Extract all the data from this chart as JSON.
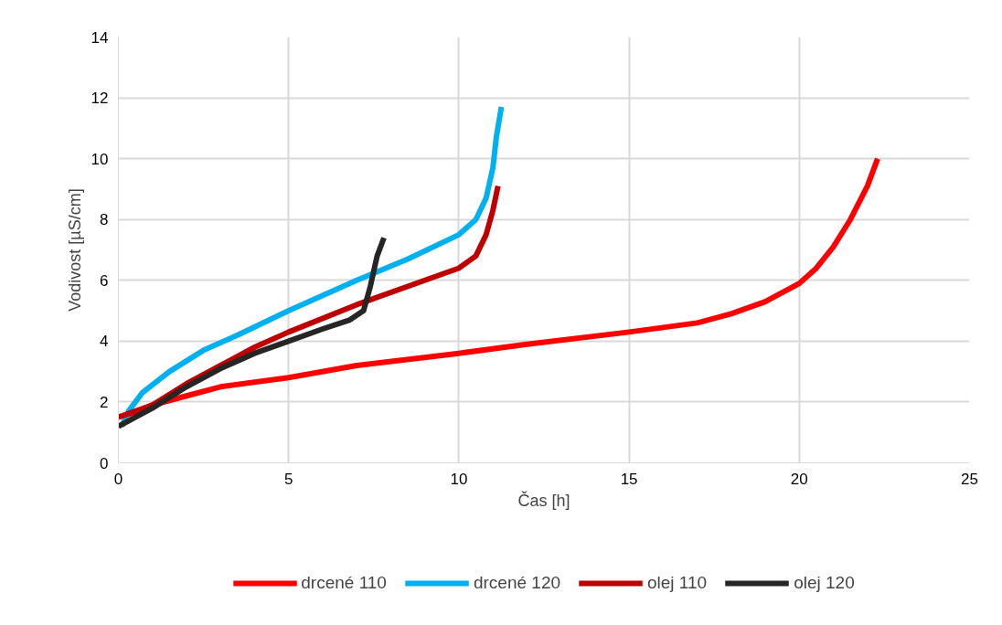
{
  "chart_data": {
    "type": "line",
    "xlabel": "Čas [h]",
    "ylabel": "Vodivost [µS/cm]",
    "xlim": [
      0,
      25
    ],
    "xticks": [
      0,
      5,
      10,
      15,
      20,
      25
    ],
    "ylim": [
      0,
      14
    ],
    "yticks": [
      0,
      2,
      4,
      6,
      8,
      10,
      12,
      14
    ],
    "grid": true,
    "legend": "bottom",
    "marker": "none",
    "line_style": "solid",
    "series": [
      {
        "name": "drcené 110",
        "color": "#ff0000",
        "x": [
          0.1,
          1,
          2,
          3,
          5,
          7,
          10,
          12,
          15,
          17,
          18,
          19,
          20,
          20.5,
          21,
          21.5,
          22,
          22.3
        ],
        "values": [
          1.5,
          1.9,
          2.2,
          2.5,
          2.8,
          3.2,
          3.6,
          3.9,
          4.3,
          4.6,
          4.9,
          5.3,
          5.9,
          6.4,
          7.1,
          8,
          9.1,
          10
        ]
      },
      {
        "name": "drcené 120",
        "color": "#00b0f0",
        "x": [
          0.1,
          0.3,
          0.7,
          1.5,
          2.5,
          3.5,
          5,
          7,
          8.5,
          10,
          10.5,
          10.8,
          11,
          11.1,
          11.25
        ],
        "values": [
          1.2,
          1.7,
          2.3,
          3,
          3.7,
          4.2,
          5.0,
          6,
          6.7,
          7.5,
          8,
          8.7,
          9.7,
          10.7,
          11.7
        ]
      },
      {
        "name": "olej 110",
        "color": "#c00000",
        "x": [
          0,
          1,
          2,
          3,
          4,
          5,
          7,
          9,
          10,
          10.5,
          10.8,
          11,
          11.15
        ],
        "values": [
          1.5,
          1.9,
          2.6,
          3.2,
          3.8,
          4.3,
          5.2,
          6,
          6.4,
          6.8,
          7.5,
          8.3,
          9.1
        ]
      },
      {
        "name": "olej 120",
        "color": "#262626",
        "x": [
          0,
          1,
          2,
          3,
          4,
          5,
          6,
          6.8,
          7.2,
          7.4,
          7.6,
          7.8
        ],
        "values": [
          1.2,
          1.8,
          2.5,
          3.1,
          3.6,
          4.0,
          4.4,
          4.7,
          5,
          5.8,
          6.8,
          7.4
        ]
      }
    ]
  }
}
